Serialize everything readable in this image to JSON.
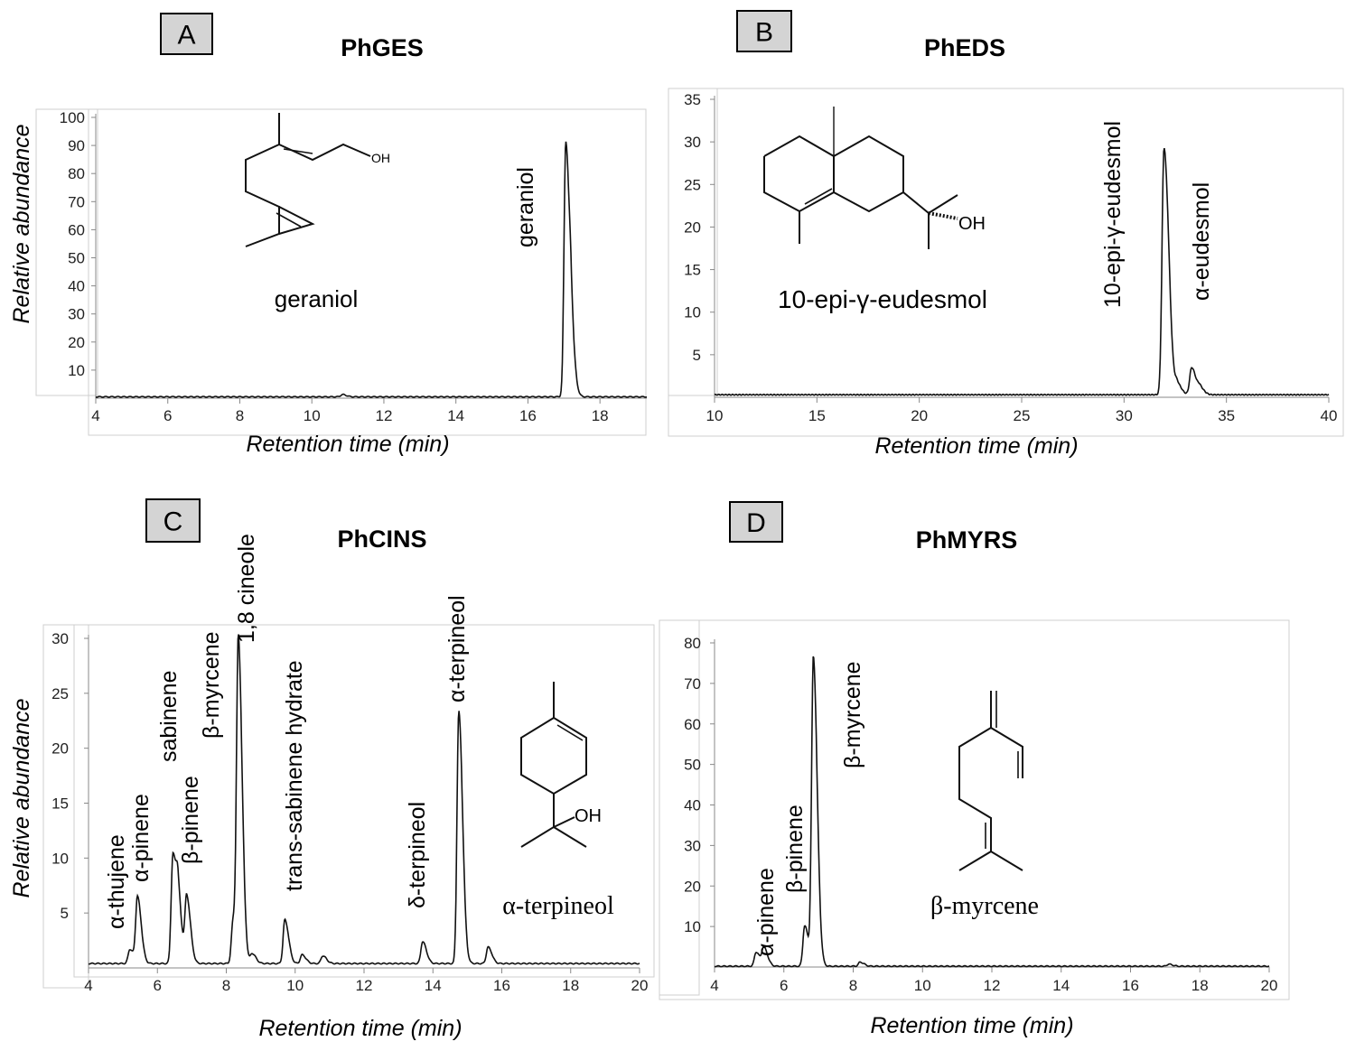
{
  "chart_data": [
    {
      "panel_letter": "A",
      "title": "PhGES",
      "type": "line",
      "xlabel": "Retention time (min)",
      "ylabel": "Relative abundance",
      "xlim": [
        4,
        19.3
      ],
      "ylim": [
        0,
        100
      ],
      "xticks": [
        4,
        6,
        8,
        10,
        12,
        14,
        16,
        18
      ],
      "yticks": [
        10,
        20,
        30,
        40,
        50,
        60,
        70,
        80,
        90,
        100
      ],
      "baseline": 0.5,
      "peaks": [
        {
          "x": 10.85,
          "y": 0.8
        },
        {
          "x": 17.05,
          "y": 91
        },
        {
          "x": 17.2,
          "y": 15
        }
      ],
      "peak_labels": [
        {
          "text": "geraniol",
          "x": 16.8
        }
      ],
      "structure_name": "geraniol"
    },
    {
      "panel_letter": "B",
      "title": "PhEDS",
      "type": "line",
      "xlabel": "Retention time (min)",
      "ylabel": "",
      "xlim": [
        10,
        40
      ],
      "ylim": [
        0,
        35
      ],
      "xticks": [
        10,
        15,
        20,
        25,
        30,
        35,
        40
      ],
      "yticks": [
        5,
        10,
        15,
        20,
        25,
        30,
        35
      ],
      "baseline": 0.3,
      "peaks": [
        {
          "x": 31.95,
          "y": 29
        },
        {
          "x": 32.2,
          "y": 2.5
        },
        {
          "x": 32.6,
          "y": 1.2
        },
        {
          "x": 33.3,
          "y": 3.2
        },
        {
          "x": 33.7,
          "y": 0.8
        }
      ],
      "peak_labels": [
        {
          "text": "10-epi-γ-eudesmol",
          "x": 29.7
        },
        {
          "text": "α-eudesmol",
          "x": 33.9
        }
      ],
      "structure_name": "10-epi-γ-eudesmol"
    },
    {
      "panel_letter": "C",
      "title": "PhCINS",
      "type": "line",
      "xlabel": "Retention time (min)",
      "ylabel": "Relative abundance",
      "xlim": [
        4,
        20
      ],
      "ylim": [
        0,
        30
      ],
      "xticks": [
        4,
        6,
        8,
        10,
        12,
        14,
        16,
        18,
        20
      ],
      "yticks": [
        5,
        10,
        15,
        20,
        25,
        30
      ],
      "baseline": 0.4,
      "peaks": [
        {
          "x": 5.2,
          "y": 1.3
        },
        {
          "x": 5.42,
          "y": 6
        },
        {
          "x": 6.45,
          "y": 10
        },
        {
          "x": 6.6,
          "y": 4.6
        },
        {
          "x": 6.85,
          "y": 6
        },
        {
          "x": 8.2,
          "y": 4
        },
        {
          "x": 8.35,
          "y": 28.5
        },
        {
          "x": 8.75,
          "y": 0.9
        },
        {
          "x": 9.7,
          "y": 4
        },
        {
          "x": 10.2,
          "y": 0.8
        },
        {
          "x": 10.8,
          "y": 0.7
        },
        {
          "x": 13.7,
          "y": 2
        },
        {
          "x": 14.75,
          "y": 23
        },
        {
          "x": 15.6,
          "y": 1.5
        }
      ],
      "peak_labels": [
        {
          "text": "α-thujene",
          "x": 4.7,
          "y": 0.9
        },
        {
          "text": "α-pinene",
          "x": 5.45,
          "y": 1.55
        },
        {
          "text": "sabinene",
          "x": 6.0,
          "y": 2.2
        },
        {
          "text": "β-pinene",
          "x": 6.9,
          "y": 1.8
        },
        {
          "text": "β-myrcene",
          "x": 7.6,
          "y": 4.6
        },
        {
          "text": "1,8 cineole",
          "x": 8.55,
          "y": 5.4
        },
        {
          "text": "trans-sabinene hydrate",
          "x": 10.1,
          "y": 4.6
        },
        {
          "text": "δ-terpineol",
          "x": 13.5,
          "y": 1.3
        },
        {
          "text": "α-terpineol",
          "x": 14.85,
          "y": 4.8
        }
      ],
      "structure_name": "α-terpineol"
    },
    {
      "panel_letter": "D",
      "title": "PhMYRS",
      "type": "line",
      "xlabel": "Retention time (min)",
      "ylabel": "",
      "xlim": [
        4,
        20
      ],
      "ylim": [
        0,
        80
      ],
      "xticks": [
        4,
        6,
        8,
        10,
        12,
        14,
        16,
        18,
        20
      ],
      "yticks": [
        10,
        20,
        30,
        40,
        50,
        60,
        70,
        80
      ],
      "baseline": 0.2,
      "peaks": [
        {
          "x": 5.2,
          "y": 3.5
        },
        {
          "x": 5.42,
          "y": 4.5
        },
        {
          "x": 6.6,
          "y": 10
        },
        {
          "x": 6.85,
          "y": 76
        },
        {
          "x": 8.2,
          "y": 1
        },
        {
          "x": 17.1,
          "y": 0.5
        }
      ],
      "peak_labels": [
        {
          "text": "α-pinene",
          "x": 5.3,
          "y": 11
        },
        {
          "text": "β-pinene",
          "x": 6.3,
          "y": 12
        },
        {
          "text": "β-myrcene",
          "x": 8.3,
          "y": 50
        }
      ],
      "structure_name": "β-myrcene"
    }
  ],
  "structures": {
    "hydroxyl": "OH"
  }
}
